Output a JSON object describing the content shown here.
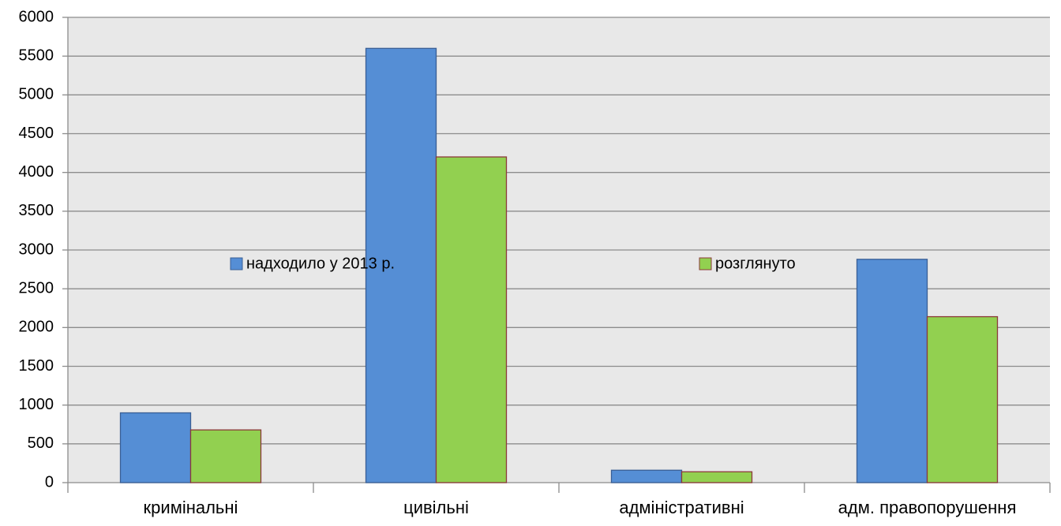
{
  "chart_data": {
    "type": "bar",
    "categories": [
      "кримінальні",
      "цивільні",
      "адміністративні",
      "адм. правопорушення"
    ],
    "series": [
      {
        "name": "надходило у 2013 р.",
        "color": "#558ed5",
        "values": [
          900,
          5600,
          160,
          2880
        ]
      },
      {
        "name": "розглянуто",
        "color": "#92d050",
        "values": [
          680,
          4200,
          140,
          2140
        ]
      }
    ],
    "ylim": [
      0,
      6000
    ],
    "yticks": [
      0,
      500,
      1000,
      1500,
      2000,
      2500,
      3000,
      3500,
      4000,
      4500,
      5000,
      5500,
      6000
    ],
    "grid": true,
    "legend": "center"
  }
}
